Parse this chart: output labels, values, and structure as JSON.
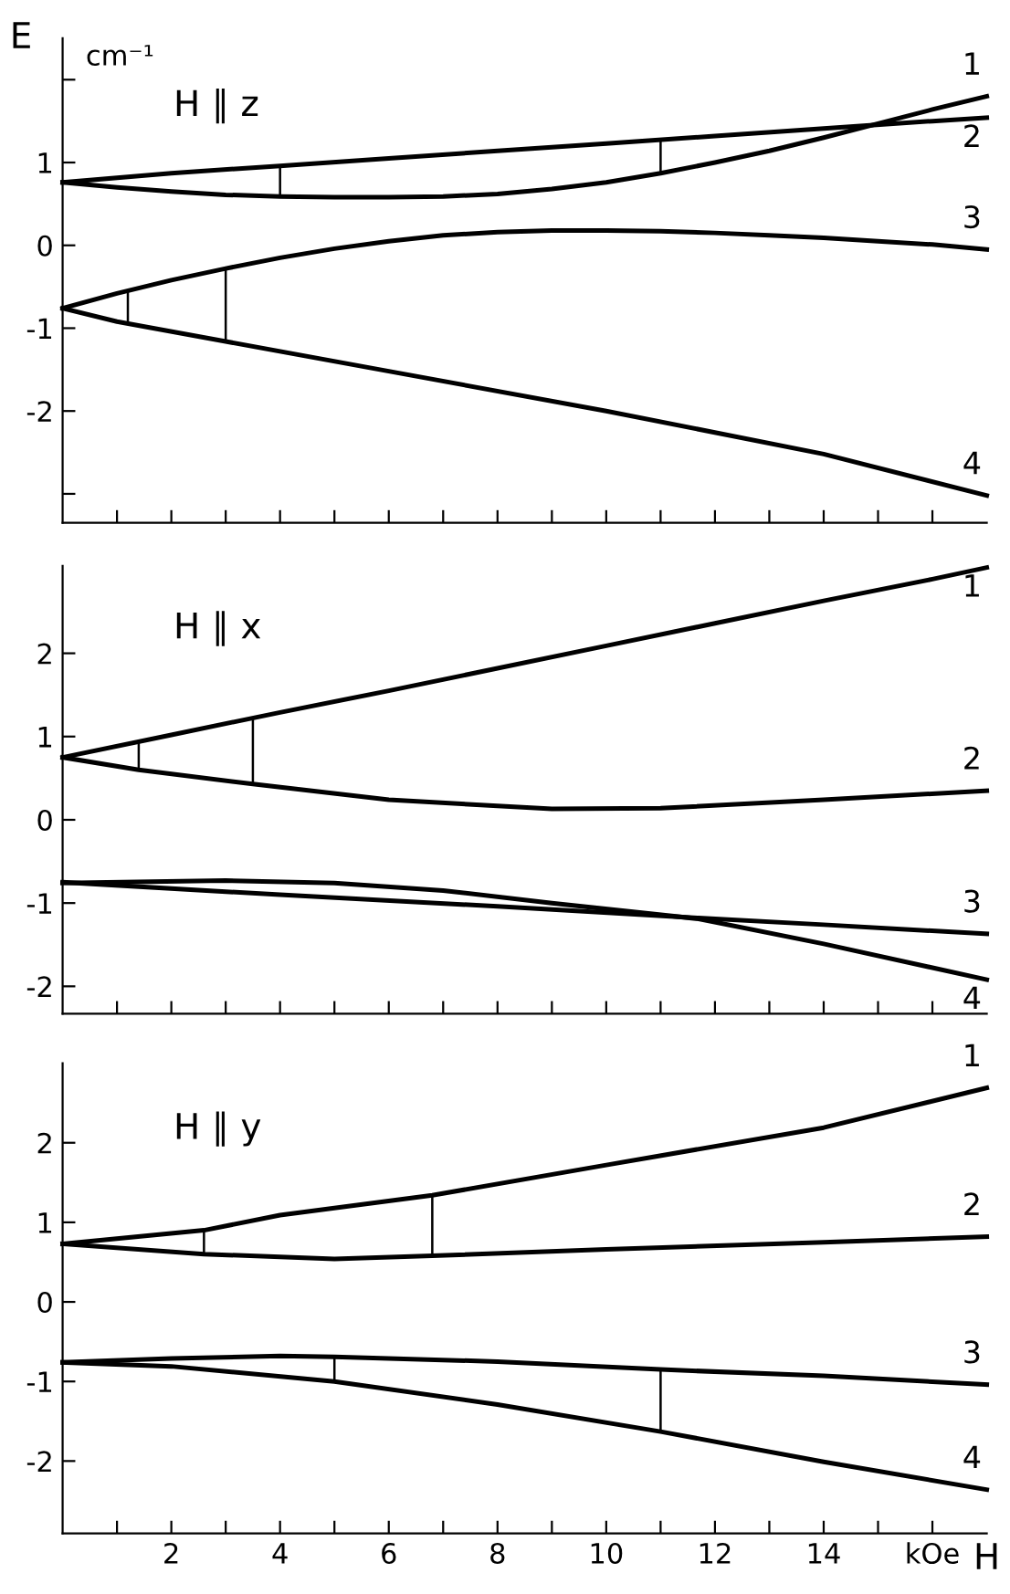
{
  "chart_data": [
    {
      "type": "line",
      "title": "H ∥ z",
      "ylabel": "E",
      "annotations": [
        "1",
        "2",
        "3",
        "4",
        "cm⁻¹"
      ],
      "xlim": [
        0,
        17
      ],
      "ylim": [
        -3.35,
        2.5
      ],
      "xticks": [
        {
          "value": 1,
          "label": null
        },
        {
          "value": 2,
          "label": null
        },
        {
          "value": 3,
          "label": null
        },
        {
          "value": 4,
          "label": null
        },
        {
          "value": 5,
          "label": null
        },
        {
          "value": 6,
          "label": null
        },
        {
          "value": 7,
          "label": null
        },
        {
          "value": 8,
          "label": null
        },
        {
          "value": 9,
          "label": null
        },
        {
          "value": 10,
          "label": null
        },
        {
          "value": 11,
          "label": null
        },
        {
          "value": 12,
          "label": null
        },
        {
          "value": 13,
          "label": null
        },
        {
          "value": 14,
          "label": null
        },
        {
          "value": 15,
          "label": null
        },
        {
          "value": 16,
          "label": null
        }
      ],
      "yticks": [
        {
          "value": 2,
          "label": null
        },
        1,
        0,
        -1,
        -2,
        {
          "value": -3,
          "label": null
        }
      ],
      "tick_labels": "y",
      "grid": false,
      "legend": false,
      "series": [
        {
          "color": "#000000",
          "x": [
            0,
            1,
            2,
            3,
            4,
            5,
            6,
            7,
            8,
            9,
            10,
            11,
            12,
            13,
            14,
            15,
            16,
            17
          ],
          "values": [
            0.76,
            0.7,
            0.65,
            0.61,
            0.59,
            0.58,
            0.58,
            0.59,
            0.62,
            0.68,
            0.76,
            0.87,
            1.0,
            1.14,
            1.3,
            1.47,
            1.64,
            1.8
          ]
        },
        {
          "color": "#000000",
          "x": [
            0,
            2,
            4,
            6,
            8,
            10,
            12,
            14,
            16,
            17
          ],
          "values": [
            0.76,
            0.87,
            0.96,
            1.05,
            1.14,
            1.23,
            1.32,
            1.41,
            1.5,
            1.54
          ]
        },
        {
          "color": "#000000",
          "x": [
            0,
            1,
            2,
            3,
            4,
            5,
            6,
            7,
            8,
            9,
            10,
            11,
            12,
            13,
            14,
            15,
            16,
            17
          ],
          "values": [
            -0.76,
            -0.58,
            -0.42,
            -0.28,
            -0.15,
            -0.04,
            0.05,
            0.12,
            0.16,
            0.18,
            0.18,
            0.17,
            0.15,
            0.12,
            0.09,
            0.05,
            0.01,
            -0.05
          ]
        },
        {
          "color": "#000000",
          "x": [
            0,
            1,
            3,
            6,
            10,
            14,
            17
          ],
          "values": [
            -0.76,
            -0.92,
            -1.16,
            -1.52,
            -2.0,
            -2.52,
            -3.02
          ]
        },
        {
          "color": "#000000",
          "x": [
            4,
            4
          ],
          "values": [
            0.59,
            0.96
          ]
        },
        {
          "color": "#000000",
          "x": [
            11,
            11
          ],
          "values": [
            0.87,
            1.28
          ]
        },
        {
          "color": "#000000",
          "x": [
            1.2,
            1.2
          ],
          "values": [
            -0.94,
            -0.55
          ]
        },
        {
          "color": "#000000",
          "x": [
            3,
            3
          ],
          "values": [
            -1.16,
            -0.28
          ]
        }
      ]
    },
    {
      "type": "line",
      "title": "H ∥ x",
      "annotations": [
        "1",
        "2",
        "3",
        "4"
      ],
      "xlim": [
        0,
        17
      ],
      "ylim": [
        -2.33,
        3.05
      ],
      "xticks": [
        {
          "value": 1,
          "label": null
        },
        {
          "value": 2,
          "label": null
        },
        {
          "value": 3,
          "label": null
        },
        {
          "value": 4,
          "label": null
        },
        {
          "value": 5,
          "label": null
        },
        {
          "value": 6,
          "label": null
        },
        {
          "value": 7,
          "label": null
        },
        {
          "value": 8,
          "label": null
        },
        {
          "value": 9,
          "label": null
        },
        {
          "value": 10,
          "label": null
        },
        {
          "value": 11,
          "label": null
        },
        {
          "value": 12,
          "label": null
        },
        {
          "value": 13,
          "label": null
        },
        {
          "value": 14,
          "label": null
        },
        {
          "value": 15,
          "label": null
        },
        {
          "value": 16,
          "label": null
        }
      ],
      "yticks": [
        2,
        1,
        0,
        -1,
        -2
      ],
      "tick_labels": "y",
      "grid": false,
      "legend": false,
      "series": [
        {
          "color": "#000000",
          "x": [
            0,
            2,
            4,
            6,
            8,
            10,
            12,
            14,
            16,
            17
          ],
          "values": [
            0.75,
            1.02,
            1.29,
            1.55,
            1.82,
            2.09,
            2.36,
            2.63,
            2.89,
            3.03
          ]
        },
        {
          "color": "#000000",
          "x": [
            0,
            1.4,
            3.5,
            6,
            9,
            11,
            14,
            17
          ],
          "values": [
            0.75,
            0.6,
            0.43,
            0.24,
            0.13,
            0.14,
            0.24,
            0.35
          ]
        },
        {
          "color": "#000000",
          "x": [
            0,
            4,
            8,
            11.7,
            14,
            17
          ],
          "values": [
            -0.75,
            -0.9,
            -1.04,
            -1.18,
            -1.26,
            -1.37
          ]
        },
        {
          "color": "#000000",
          "x": [
            0,
            3,
            5,
            7,
            9,
            11.7,
            14,
            17
          ],
          "values": [
            -0.76,
            -0.73,
            -0.76,
            -0.85,
            -1.0,
            -1.19,
            -1.49,
            -1.92
          ]
        },
        {
          "color": "#000000",
          "x": [
            1.4,
            1.4
          ],
          "values": [
            0.6,
            0.94
          ]
        },
        {
          "color": "#000000",
          "x": [
            3.5,
            3.5
          ],
          "values": [
            0.43,
            1.22
          ]
        }
      ]
    },
    {
      "type": "line",
      "title": "H ∥ y",
      "xlabel": "H",
      "annotations": [
        "1",
        "2",
        "3",
        "4"
      ],
      "xlim": [
        0,
        17
      ],
      "ylim": [
        -2.91,
        3.0
      ],
      "xticks": [
        {
          "value": 1,
          "label": null
        },
        2,
        {
          "value": 3,
          "label": null
        },
        4,
        {
          "value": 5,
          "label": null
        },
        6,
        {
          "value": 7,
          "label": null
        },
        8,
        {
          "value": 9,
          "label": null
        },
        10,
        {
          "value": 11,
          "label": null
        },
        12,
        {
          "value": 13,
          "label": null
        },
        14,
        {
          "value": 15,
          "label": null
        },
        {
          "value": 16,
          "label": "kOe"
        }
      ],
      "yticks": [
        2,
        1,
        0,
        -1,
        -2
      ],
      "grid": false,
      "legend": false,
      "series": [
        {
          "color": "#000000",
          "x": [
            0,
            2.6,
            4,
            6.8,
            10,
            14,
            17
          ],
          "values": [
            0.73,
            0.9,
            1.09,
            1.34,
            1.72,
            2.19,
            2.69
          ]
        },
        {
          "color": "#000000",
          "x": [
            0,
            2.6,
            5,
            6.8,
            10,
            14,
            17
          ],
          "values": [
            0.73,
            0.6,
            0.54,
            0.58,
            0.66,
            0.75,
            0.82
          ]
        },
        {
          "color": "#000000",
          "x": [
            0,
            2,
            4,
            5,
            8,
            11,
            14,
            17
          ],
          "values": [
            -0.76,
            -0.71,
            -0.68,
            -0.69,
            -0.75,
            -0.85,
            -0.93,
            -1.04
          ]
        },
        {
          "color": "#000000",
          "x": [
            0,
            2,
            5,
            8,
            11,
            14,
            17
          ],
          "values": [
            -0.76,
            -0.81,
            -1.0,
            -1.29,
            -1.63,
            -2.01,
            -2.36
          ]
        },
        {
          "color": "#000000",
          "x": [
            2.6,
            2.6
          ],
          "values": [
            0.6,
            0.9
          ]
        },
        {
          "color": "#000000",
          "x": [
            6.8,
            6.8
          ],
          "values": [
            0.58,
            1.34
          ]
        },
        {
          "color": "#000000",
          "x": [
            5,
            5
          ],
          "values": [
            -1.0,
            -0.69
          ]
        },
        {
          "color": "#000000",
          "x": [
            11,
            11
          ],
          "values": [
            -1.63,
            -0.85
          ]
        }
      ]
    }
  ]
}
